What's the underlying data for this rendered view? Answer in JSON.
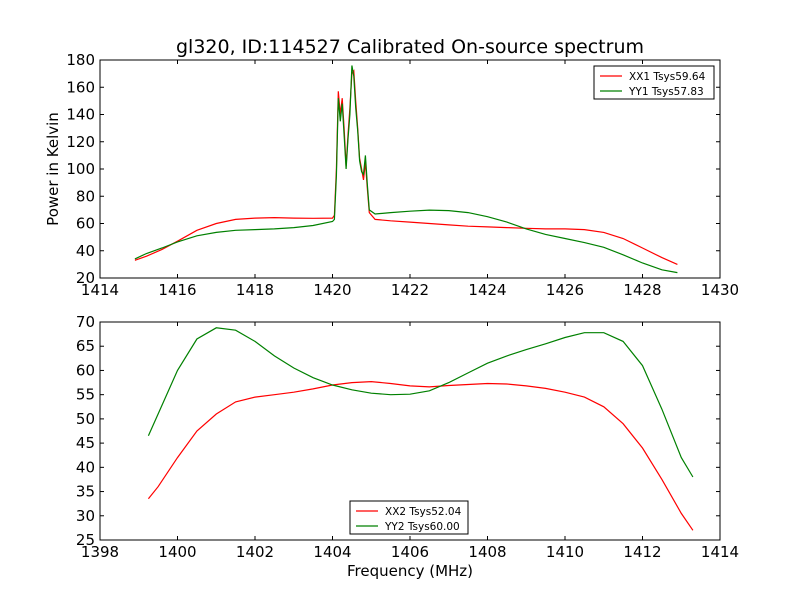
{
  "chart_data": [
    {
      "type": "line",
      "title": "gl320, ID:114527 Calibrated On-source spectrum",
      "xlabel": "",
      "ylabel": "Power in Kelvin",
      "xlim": [
        1414,
        1430
      ],
      "ylim": [
        20,
        180
      ],
      "xticks": [
        "1414",
        "1416",
        "1418",
        "1420",
        "1422",
        "1424",
        "1426",
        "1428",
        "1430"
      ],
      "yticks": [
        "20",
        "40",
        "60",
        "80",
        "100",
        "120",
        "140",
        "160",
        "180"
      ],
      "grid": false,
      "legend_position": "top-right",
      "series": [
        {
          "name": "XX1 Tsys59.64",
          "color": "#ff0000",
          "points": [
            [
              1414.9,
              33
            ],
            [
              1415.2,
              36
            ],
            [
              1415.6,
              41
            ],
            [
              1416.0,
              47
            ],
            [
              1416.5,
              55
            ],
            [
              1417.0,
              60
            ],
            [
              1417.5,
              63
            ],
            [
              1418.0,
              64
            ],
            [
              1418.5,
              64.3
            ],
            [
              1419.0,
              64
            ],
            [
              1419.5,
              63.8
            ],
            [
              1420.0,
              64
            ],
            [
              1420.05,
              66
            ],
            [
              1420.1,
              100
            ],
            [
              1420.15,
              157
            ],
            [
              1420.2,
              140
            ],
            [
              1420.25,
              152
            ],
            [
              1420.3,
              130
            ],
            [
              1420.35,
              102
            ],
            [
              1420.4,
              125
            ],
            [
              1420.45,
              145
            ],
            [
              1420.5,
              170
            ],
            [
              1420.55,
              172
            ],
            [
              1420.6,
              150
            ],
            [
              1420.65,
              130
            ],
            [
              1420.7,
              108
            ],
            [
              1420.75,
              100
            ],
            [
              1420.8,
              92
            ],
            [
              1420.85,
              105
            ],
            [
              1420.9,
              85
            ],
            [
              1420.95,
              68
            ],
            [
              1421.1,
              63
            ],
            [
              1421.5,
              62
            ],
            [
              1422.0,
              61
            ],
            [
              1422.5,
              60
            ],
            [
              1423.0,
              59
            ],
            [
              1423.5,
              58
            ],
            [
              1424.0,
              57.5
            ],
            [
              1424.5,
              57
            ],
            [
              1425.0,
              56.5
            ],
            [
              1425.5,
              56
            ],
            [
              1426.0,
              56
            ],
            [
              1426.5,
              55.5
            ],
            [
              1427.0,
              53.5
            ],
            [
              1427.5,
              49
            ],
            [
              1428.0,
              42
            ],
            [
              1428.5,
              35
            ],
            [
              1428.9,
              30
            ]
          ]
        },
        {
          "name": "YY1 Tsys57.83",
          "color": "#008000",
          "points": [
            [
              1414.9,
              34
            ],
            [
              1415.2,
              38
            ],
            [
              1415.6,
              42
            ],
            [
              1416.0,
              46.5
            ],
            [
              1416.5,
              51
            ],
            [
              1417.0,
              53.5
            ],
            [
              1417.5,
              55
            ],
            [
              1418.0,
              55.5
            ],
            [
              1418.5,
              56
            ],
            [
              1419.0,
              57
            ],
            [
              1419.5,
              58.5
            ],
            [
              1420.0,
              61.5
            ],
            [
              1420.05,
              63
            ],
            [
              1420.1,
              95
            ],
            [
              1420.15,
              152
            ],
            [
              1420.2,
              135
            ],
            [
              1420.25,
              148
            ],
            [
              1420.3,
              125
            ],
            [
              1420.35,
              100
            ],
            [
              1420.4,
              122
            ],
            [
              1420.45,
              140
            ],
            [
              1420.5,
              176
            ],
            [
              1420.55,
              168
            ],
            [
              1420.6,
              145
            ],
            [
              1420.65,
              128
            ],
            [
              1420.7,
              106
            ],
            [
              1420.75,
              98
            ],
            [
              1420.8,
              96
            ],
            [
              1420.85,
              110
            ],
            [
              1420.9,
              88
            ],
            [
              1420.95,
              70
            ],
            [
              1421.1,
              67
            ],
            [
              1421.5,
              68
            ],
            [
              1422.0,
              69
            ],
            [
              1422.5,
              69.8
            ],
            [
              1423.0,
              69.5
            ],
            [
              1423.5,
              68
            ],
            [
              1424.0,
              65
            ],
            [
              1424.5,
              61
            ],
            [
              1425.0,
              56
            ],
            [
              1425.5,
              52
            ],
            [
              1426.0,
              49
            ],
            [
              1426.5,
              46
            ],
            [
              1427.0,
              42.5
            ],
            [
              1427.5,
              37
            ],
            [
              1428.0,
              31
            ],
            [
              1428.5,
              26
            ],
            [
              1428.9,
              24
            ]
          ]
        }
      ]
    },
    {
      "type": "line",
      "title": "",
      "xlabel": "Frequency (MHz)",
      "ylabel": "",
      "xlim": [
        1398,
        1414
      ],
      "ylim": [
        25,
        70
      ],
      "xticks": [
        "1398",
        "1400",
        "1402",
        "1404",
        "1406",
        "1408",
        "1410",
        "1412",
        "1414"
      ],
      "yticks": [
        "25",
        "30",
        "35",
        "40",
        "45",
        "50",
        "55",
        "60",
        "65",
        "70"
      ],
      "grid": false,
      "legend_position": "bottom-center",
      "series": [
        {
          "name": "XX2 Tsys52.04",
          "color": "#ff0000",
          "points": [
            [
              1399.25,
              33.5
            ],
            [
              1399.5,
              36
            ],
            [
              1400.0,
              42
            ],
            [
              1400.5,
              47.5
            ],
            [
              1401.0,
              51
            ],
            [
              1401.5,
              53.5
            ],
            [
              1402.0,
              54.5
            ],
            [
              1402.5,
              55
            ],
            [
              1403.0,
              55.5
            ],
            [
              1403.5,
              56.2
            ],
            [
              1404.0,
              57
            ],
            [
              1404.5,
              57.5
            ],
            [
              1405.0,
              57.7
            ],
            [
              1405.5,
              57.3
            ],
            [
              1406.0,
              56.8
            ],
            [
              1406.5,
              56.6
            ],
            [
              1407.0,
              56.9
            ],
            [
              1407.5,
              57.1
            ],
            [
              1408.0,
              57.3
            ],
            [
              1408.5,
              57.2
            ],
            [
              1409.0,
              56.8
            ],
            [
              1409.5,
              56.3
            ],
            [
              1410.0,
              55.5
            ],
            [
              1410.5,
              54.5
            ],
            [
              1411.0,
              52.5
            ],
            [
              1411.5,
              49
            ],
            [
              1412.0,
              44
            ],
            [
              1412.5,
              37.5
            ],
            [
              1413.0,
              30.5
            ],
            [
              1413.3,
              27
            ]
          ]
        },
        {
          "name": "YY2 Tsys60.00",
          "color": "#008000",
          "points": [
            [
              1399.25,
              46.5
            ],
            [
              1399.5,
              51
            ],
            [
              1400.0,
              60
            ],
            [
              1400.5,
              66.5
            ],
            [
              1401.0,
              68.8
            ],
            [
              1401.5,
              68.3
            ],
            [
              1402.0,
              66
            ],
            [
              1402.5,
              63
            ],
            [
              1403.0,
              60.5
            ],
            [
              1403.5,
              58.5
            ],
            [
              1404.0,
              57
            ],
            [
              1404.5,
              56
            ],
            [
              1405.0,
              55.3
            ],
            [
              1405.5,
              55
            ],
            [
              1406.0,
              55.1
            ],
            [
              1406.5,
              55.8
            ],
            [
              1407.0,
              57.5
            ],
            [
              1407.5,
              59.5
            ],
            [
              1408.0,
              61.5
            ],
            [
              1408.5,
              63
            ],
            [
              1409.0,
              64.3
            ],
            [
              1409.5,
              65.5
            ],
            [
              1410.0,
              66.8
            ],
            [
              1410.5,
              67.8
            ],
            [
              1411.0,
              67.8
            ],
            [
              1411.5,
              66
            ],
            [
              1412.0,
              61
            ],
            [
              1412.5,
              52
            ],
            [
              1413.0,
              42
            ],
            [
              1413.3,
              38
            ]
          ]
        }
      ]
    }
  ]
}
